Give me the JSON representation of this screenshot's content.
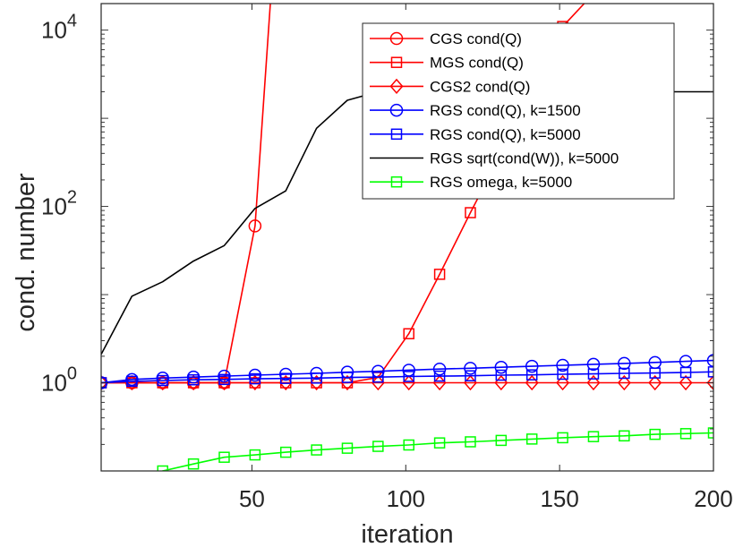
{
  "chart_data": {
    "type": "line",
    "xlabel": "iteration",
    "ylabel": "cond. number",
    "xlim": [
      1,
      200
    ],
    "ylim": [
      0.1,
      20000
    ],
    "yscale": "log",
    "grid": false,
    "legend_position": "top-right",
    "x_ticks": [
      50,
      100,
      150,
      200
    ],
    "y_ticks": [
      {
        "value": 1,
        "base": "10",
        "exp": "0"
      },
      {
        "value": 100,
        "base": "10",
        "exp": "2"
      },
      {
        "value": 10000,
        "base": "10",
        "exp": "4"
      }
    ],
    "series": [
      {
        "name": "CGS cond(Q)",
        "color": "#ff0000",
        "marker": "circle",
        "x": [
          1,
          11,
          21,
          31,
          41,
          51,
          56
        ],
        "y": [
          1,
          1,
          1,
          1,
          1,
          60,
          20000
        ],
        "marker_x": [
          1,
          11,
          21,
          31,
          41,
          51
        ]
      },
      {
        "name": "MGS cond(Q)",
        "color": "#ff0000",
        "marker": "square",
        "x": [
          1,
          11,
          21,
          31,
          41,
          51,
          61,
          71,
          81,
          91,
          101,
          111,
          121,
          131,
          141,
          151,
          158
        ],
        "y": [
          1,
          1,
          1,
          1,
          1,
          1,
          1,
          1,
          1,
          1.15,
          3.6,
          17,
          85,
          400,
          2000,
          11000,
          20000
        ],
        "marker_x": [
          1,
          11,
          21,
          31,
          41,
          51,
          61,
          71,
          81,
          91,
          101,
          111,
          121,
          131,
          141,
          151
        ]
      },
      {
        "name": "CGS2 cond(Q)",
        "color": "#ff0000",
        "marker": "diamond",
        "x": [
          1,
          11,
          21,
          31,
          41,
          51,
          61,
          71,
          81,
          91,
          101,
          111,
          121,
          131,
          141,
          151,
          161,
          171,
          181,
          191,
          200
        ],
        "y": [
          1,
          1,
          1,
          1,
          1,
          1,
          1,
          1,
          1,
          1,
          1,
          1,
          1,
          1,
          1,
          1,
          1,
          1,
          1,
          1,
          1
        ]
      },
      {
        "name": "RGS cond(Q), k=1500",
        "color": "#0000ff",
        "marker": "circle",
        "x": [
          1,
          11,
          21,
          31,
          41,
          51,
          61,
          71,
          81,
          91,
          101,
          111,
          121,
          131,
          141,
          151,
          161,
          171,
          181,
          191,
          200
        ],
        "y": [
          1,
          1.09,
          1.13,
          1.16,
          1.19,
          1.22,
          1.25,
          1.28,
          1.32,
          1.35,
          1.39,
          1.43,
          1.46,
          1.5,
          1.54,
          1.58,
          1.62,
          1.66,
          1.7,
          1.75,
          1.79
        ]
      },
      {
        "name": "RGS cond(Q), k=5000",
        "color": "#0000ff",
        "marker": "square",
        "x": [
          1,
          11,
          21,
          31,
          41,
          51,
          61,
          71,
          81,
          91,
          101,
          111,
          121,
          131,
          141,
          151,
          161,
          171,
          181,
          191,
          200
        ],
        "y": [
          1,
          1.04,
          1.06,
          1.08,
          1.09,
          1.11,
          1.12,
          1.13,
          1.15,
          1.16,
          1.18,
          1.19,
          1.2,
          1.22,
          1.23,
          1.25,
          1.26,
          1.28,
          1.29,
          1.31,
          1.33
        ]
      },
      {
        "name": "RGS sqrt(cond(W)), k=5000",
        "color": "#000000",
        "marker": "none",
        "x": [
          1,
          11,
          21,
          31,
          41,
          51,
          61,
          71,
          81,
          91,
          101,
          111,
          121,
          131,
          141,
          151,
          161,
          171,
          181,
          191,
          200
        ],
        "y": [
          2.1,
          9.6,
          14,
          24,
          36,
          95,
          150,
          770,
          1600,
          2000,
          2000,
          2000,
          2000,
          2000,
          2000,
          2000,
          2000,
          2000,
          2000,
          2000,
          2000
        ]
      },
      {
        "name": "RGS omega, k=5000",
        "color": "#00ff00",
        "marker": "square",
        "x": [
          11,
          21,
          31,
          41,
          51,
          61,
          71,
          81,
          91,
          101,
          111,
          121,
          131,
          141,
          151,
          161,
          171,
          181,
          191,
          200
        ],
        "y": [
          0.075,
          0.1,
          0.12,
          0.143,
          0.152,
          0.163,
          0.173,
          0.181,
          0.19,
          0.197,
          0.208,
          0.214,
          0.222,
          0.23,
          0.238,
          0.245,
          0.25,
          0.26,
          0.265,
          0.27
        ],
        "marker_x": [
          21,
          31,
          41,
          51,
          61,
          71,
          81,
          91,
          101,
          111,
          121,
          131,
          141,
          151,
          161,
          171,
          181,
          191,
          200
        ]
      }
    ]
  }
}
